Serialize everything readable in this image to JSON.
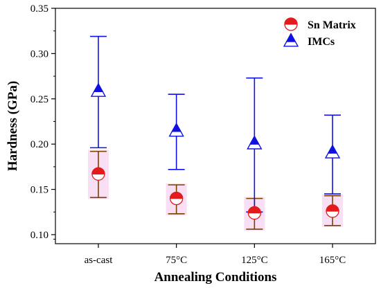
{
  "chart_data": {
    "type": "scatter",
    "xlabel": "Annealing Conditions",
    "ylabel": "Hardness (GPa)",
    "categories": [
      "as-cast",
      "75°C",
      "125°C",
      "165°C"
    ],
    "ylim": [
      0.09,
      0.35
    ],
    "yticks": [
      "0.10",
      "0.15",
      "0.20",
      "0.25",
      "0.30",
      "0.35"
    ],
    "yticks_values": [
      0.1,
      0.15,
      0.2,
      0.25,
      0.3,
      0.35
    ],
    "grid": false,
    "legend_position": "top-right",
    "series": [
      {
        "name": "Sn Matrix",
        "marker": "half-filled-circle",
        "color": "#e41a1c",
        "errorbar_color": "#7b3f00",
        "values": [
          0.167,
          0.14,
          0.124,
          0.126
        ],
        "err_low": [
          0.141,
          0.123,
          0.106,
          0.11
        ],
        "err_high": [
          0.192,
          0.155,
          0.14,
          0.143
        ]
      },
      {
        "name": "IMCs",
        "marker": "half-filled-triangle",
        "color": "#1010e0",
        "errorbar_color": "#1010e0",
        "values": [
          0.258,
          0.214,
          0.2,
          0.19
        ],
        "err_low": [
          0.196,
          0.172,
          0.125,
          0.145
        ],
        "err_high": [
          0.319,
          0.255,
          0.273,
          0.232
        ]
      }
    ]
  }
}
